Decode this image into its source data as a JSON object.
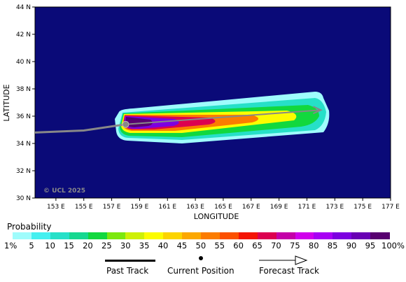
{
  "map": {
    "x_axis_title": "LONGITUDE",
    "y_axis_title": "LATITUDE",
    "copyright": "© UCL 2025",
    "lon_ticks": [
      "153 E",
      "155 E",
      "157 E",
      "159 E",
      "161 E",
      "163 E",
      "165 E",
      "167 E",
      "169 E",
      "171 E",
      "173 E",
      "175 E",
      "177 E"
    ],
    "lat_ticks": [
      "44 N",
      "42 N",
      "40 N",
      "38 N",
      "36 N",
      "34 N",
      "32 N",
      "30 N"
    ],
    "lon_range": [
      151.5,
      177
    ],
    "lat_range": [
      30,
      44
    ],
    "ocean_color": "#0a0a78",
    "track_color": "#888888"
  },
  "tracks": {
    "past": [
      [
        151.5,
        34.8
      ],
      [
        155,
        34.95
      ],
      [
        158,
        35.4
      ]
    ],
    "current_position": [
      158,
      35.4
    ],
    "forecast": [
      [
        158,
        35.4
      ],
      [
        172,
        36.45
      ]
    ]
  },
  "legend": {
    "title": "Probability",
    "labels": [
      "1%",
      "5",
      "10",
      "15",
      "20",
      "25",
      "30",
      "35",
      "40",
      "45",
      "50",
      "55",
      "60",
      "65",
      "70",
      "75",
      "80",
      "85",
      "90",
      "95",
      "100%"
    ],
    "colors": [
      "#9ffcfc",
      "#44f0f0",
      "#26e0c8",
      "#16d890",
      "#12d83e",
      "#7ce80e",
      "#cef006",
      "#fcfc00",
      "#fcd400",
      "#fca800",
      "#fc7c00",
      "#fc5000",
      "#f41404",
      "#dc0050",
      "#c400a8",
      "#d000ec",
      "#a800f4",
      "#7c00e0",
      "#6800b4",
      "#580070"
    ],
    "past_track_label": "Past Track",
    "current_position_label": "Current Position",
    "forecast_track_label": "Forecast Track"
  }
}
